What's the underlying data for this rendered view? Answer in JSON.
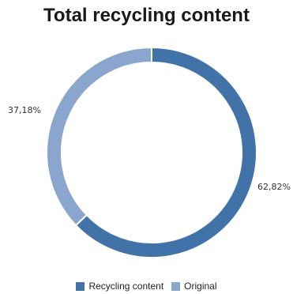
{
  "chart_data": {
    "type": "pie",
    "title": "Total recycling content",
    "donut": true,
    "legend_position": "bottom",
    "series": [
      {
        "name": "Recycling content",
        "value": 62.82,
        "label": "62,82%",
        "color": "#4273A8"
      },
      {
        "name": "Original",
        "value": 37.18,
        "label": "37,18%",
        "color": "#8AA6CE"
      }
    ]
  }
}
